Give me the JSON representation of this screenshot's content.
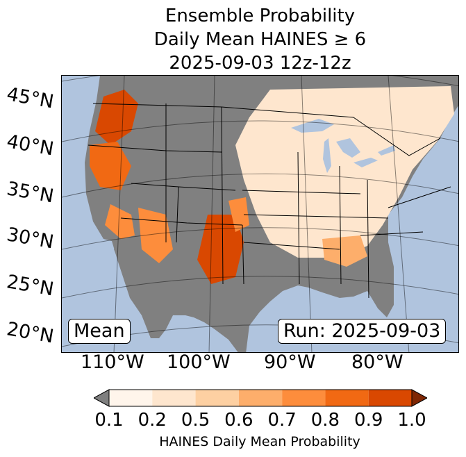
{
  "title": {
    "line1": "Ensemble Probability",
    "line2": "Daily Mean HAINES ≥ 6",
    "line3": "2025-09-03 12z-12z"
  },
  "map": {
    "ocean_color": "#b0c4de",
    "land_color": "#808080",
    "lat_labels": [
      "45°N",
      "40°N",
      "35°N",
      "30°N",
      "25°N",
      "20°N"
    ],
    "lon_labels": [
      "110°W",
      "100°W",
      "90°W",
      "80°W"
    ],
    "mean_label": "Mean",
    "run_label": "Run: 2025-09-03",
    "fill_regions": [
      {
        "area": "Pacific Northwest / Washington",
        "level": 0.9
      },
      {
        "area": "Northern California / Oregon",
        "level": 0.8
      },
      {
        "area": "Southern California",
        "level": 0.7
      },
      {
        "area": "Arizona",
        "level": 0.7
      },
      {
        "area": "New Mexico / West Texas",
        "level": 0.9
      },
      {
        "area": "Oklahoma / Kansas",
        "level": 0.7
      },
      {
        "area": "Southeast US",
        "level": 0.6
      },
      {
        "area": "Central / Eastern US",
        "level": 0.2
      }
    ]
  },
  "colorbar": {
    "min_color": "#7f7f7f",
    "max_color": "#7f2704",
    "colors": [
      "#fff5eb",
      "#fee6ce",
      "#fdd0a2",
      "#fdae6b",
      "#fd8d3c",
      "#f16913",
      "#d94801"
    ],
    "tick_labels": [
      "0.1",
      "0.2",
      "0.5",
      "0.6",
      "0.7",
      "0.8",
      "0.9",
      "1.0"
    ],
    "label": "HAINES Daily Mean Probability"
  }
}
